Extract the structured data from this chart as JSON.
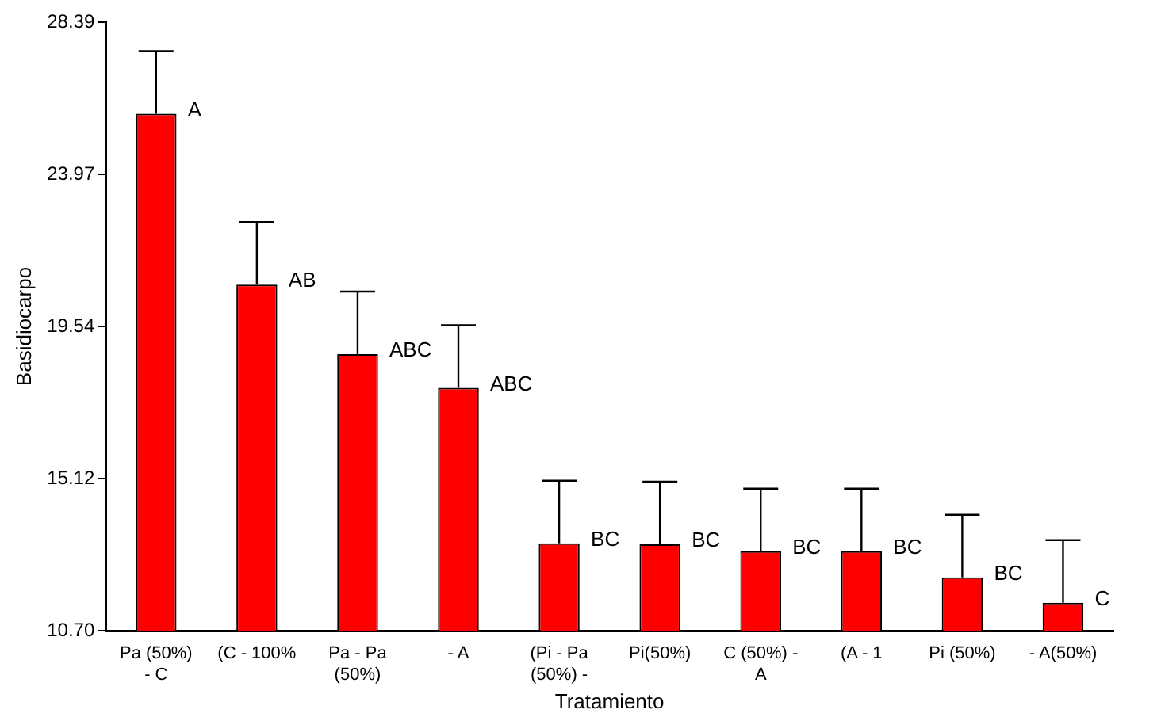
{
  "chart_data": {
    "type": "bar",
    "xlabel": "Tratamiento",
    "ylabel": "Basidiocarpo",
    "categories": [
      "Pa (50%) - C",
      "(C - 100%",
      "Pa - Pa (50%)",
      "- A",
      "(Pi - Pa (50%) -",
      "Pi(50%)",
      "C (50%) - A",
      "(A - 1",
      "Pi (50%)",
      "- A(50%)"
    ],
    "values": [
      25.73,
      20.76,
      18.74,
      17.76,
      13.24,
      13.21,
      13.01,
      13.01,
      12.25,
      11.51
    ],
    "errors": [
      [
        25.73,
        27.55
      ],
      [
        20.76,
        22.58
      ],
      [
        18.74,
        20.56
      ],
      [
        17.76,
        19.58
      ],
      [
        13.24,
        15.06
      ],
      [
        13.21,
        15.03
      ],
      [
        13.01,
        14.83
      ],
      [
        13.01,
        14.83
      ],
      [
        12.25,
        14.07
      ],
      [
        11.51,
        13.33
      ]
    ],
    "color": "#ff0000",
    "ylim": [
      10.7,
      28.39
    ],
    "yticks": [
      {
        "value": 10.7,
        "label": "10.70"
      },
      {
        "value": 15.12,
        "label": "15.12"
      },
      {
        "value": 19.54,
        "label": "19.54"
      },
      {
        "value": 23.97,
        "label": "23.97"
      },
      {
        "value": 28.39,
        "label": "28.39"
      }
    ],
    "grid": false,
    "legend": false,
    "annotations": [
      {
        "text": "A",
        "x": "Pa (50%) - C",
        "y": 25.73
      },
      {
        "text": "AB",
        "x": "(C - 100%",
        "y": 20.76
      },
      {
        "text": "ABC",
        "x": "Pa - Pa (50%)",
        "y": 18.74
      },
      {
        "text": "ABC",
        "x": "- A",
        "y": 17.76
      },
      {
        "text": "BC",
        "x": "(Pi - Pa (50%) -",
        "y": 13.24
      },
      {
        "text": "BC",
        "x": "Pi(50%)",
        "y": 13.21
      },
      {
        "text": "BC",
        "x": "C (50%) - A",
        "y": 13.01
      },
      {
        "text": "BC",
        "x": "(A - 1",
        "y": 13.01
      },
      {
        "text": "BC",
        "x": "Pi (50%)",
        "y": 12.25
      },
      {
        "text": "C",
        "x": "- A(50%)",
        "y": 11.51
      }
    ]
  }
}
